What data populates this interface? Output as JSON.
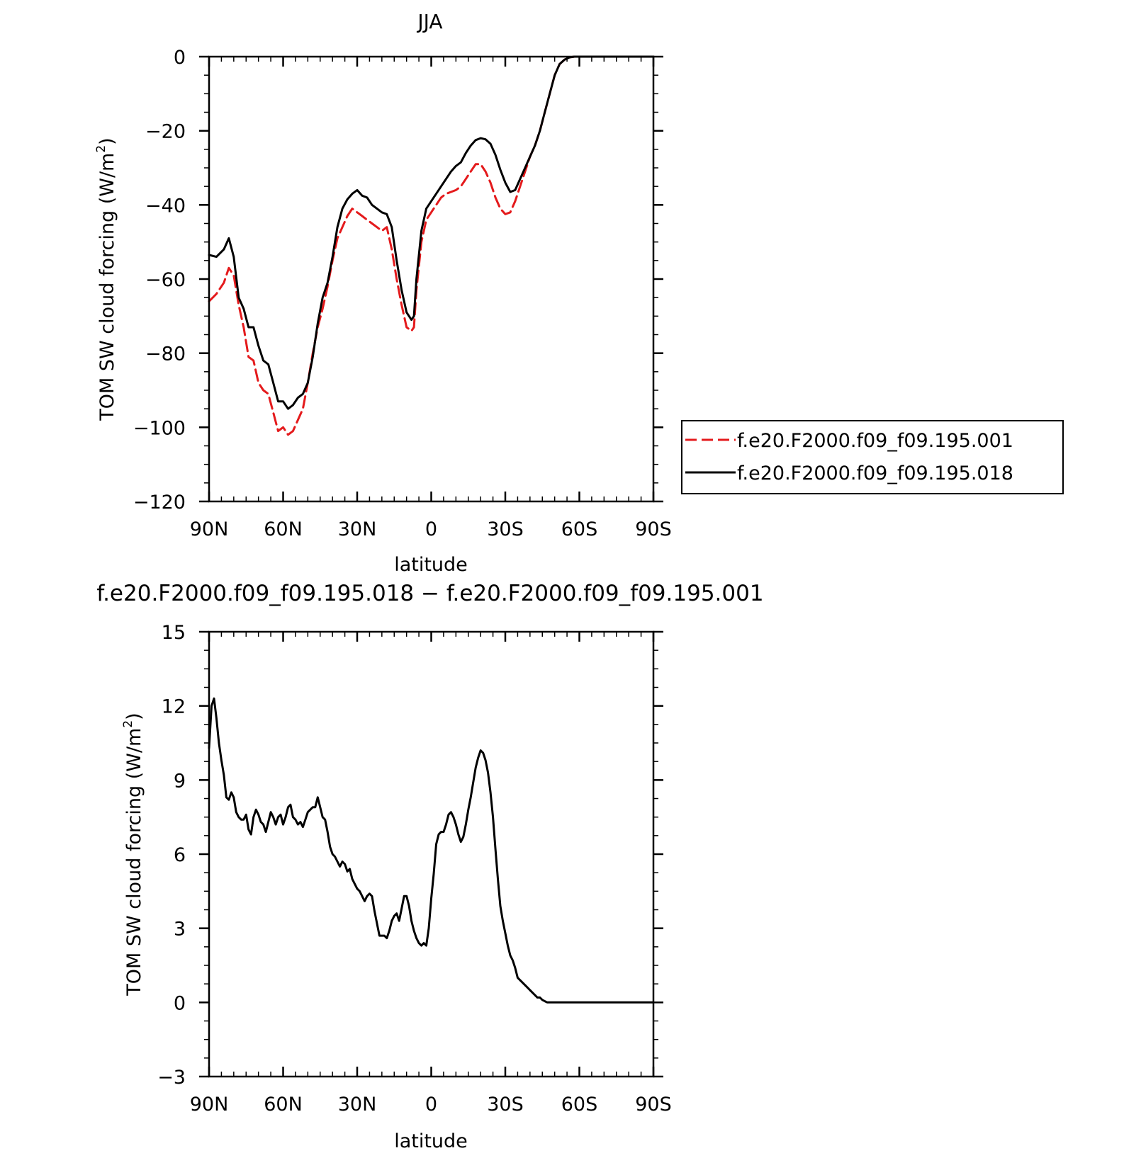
{
  "chart_data": [
    {
      "type": "line",
      "title": "JJA",
      "xlabel": "latitude",
      "ylabel": "TOM SW cloud forcing (W/m",
      "ylabel_sup": "2",
      "ylabel_close": ")",
      "xlim": [
        90,
        -90
      ],
      "ylim": [
        -120,
        0
      ],
      "x_ticks": [
        90,
        60,
        30,
        0,
        -30,
        -60,
        -90
      ],
      "x_tick_labels": [
        "90N",
        "60N",
        "30N",
        "0",
        "30S",
        "60S",
        "90S"
      ],
      "y_ticks": [
        0,
        -20,
        -40,
        -60,
        -80,
        -100,
        -120
      ],
      "y_tick_labels": [
        "0",
        "−20",
        "−40",
        "−60",
        "−80",
        "−100",
        "−120"
      ],
      "legend_position": "right",
      "series": [
        {
          "name": "f.e20.F2000.f09_f09.195.001",
          "color": "#e41a1c",
          "style": "dashed",
          "x": [
            90,
            87,
            84,
            82,
            80,
            78,
            76,
            74,
            72,
            70,
            68,
            66,
            64,
            62,
            60,
            58,
            56,
            54,
            52,
            50,
            48,
            46,
            44,
            42,
            40,
            38,
            36,
            34,
            32,
            30,
            28,
            26,
            24,
            22,
            20,
            18,
            16,
            14,
            12,
            10,
            8,
            7,
            6,
            4,
            2,
            0,
            -2,
            -4,
            -6,
            -8,
            -10,
            -12,
            -14,
            -16,
            -18,
            -20,
            -22,
            -24,
            -26,
            -28,
            -30,
            -32,
            -34,
            -36,
            -38,
            -40,
            -42,
            -44,
            -46,
            -48,
            -50,
            -52,
            -54,
            -56,
            -58,
            -60,
            -62,
            -64,
            -66,
            -68,
            -70,
            -75,
            -80,
            -85,
            -90
          ],
          "y": [
            -66,
            -64,
            -61,
            -57,
            -59,
            -67,
            -73,
            -81,
            -82,
            -88,
            -90,
            -91,
            -96,
            -101,
            -100,
            -102,
            -101,
            -98,
            -95,
            -88,
            -80,
            -73,
            -68,
            -62,
            -55,
            -49,
            -46,
            -43,
            -41,
            -42,
            -43,
            -44,
            -45,
            -46,
            -47,
            -46,
            -52,
            -60,
            -67,
            -73,
            -74,
            -73,
            -63,
            -50,
            -44,
            -42,
            -40,
            -38,
            -37,
            -36.5,
            -36,
            -35,
            -33,
            -31,
            -29,
            -29,
            -31,
            -34,
            -38,
            -41,
            -42.5,
            -42,
            -39,
            -35,
            -31,
            -27,
            -24,
            -20,
            -15,
            -10,
            -5,
            -2,
            -0.8,
            -0.2,
            0,
            0,
            0,
            0,
            0,
            0,
            0,
            0,
            0,
            0,
            0
          ]
        },
        {
          "name": "f.e20.F2000.f09_f09.195.018",
          "color": "#000000",
          "style": "solid",
          "x": [
            90,
            87,
            84,
            82,
            80,
            78,
            76,
            74,
            72,
            70,
            68,
            66,
            64,
            62,
            60,
            58,
            56,
            54,
            52,
            50,
            48,
            46,
            44,
            42,
            40,
            38,
            36,
            34,
            32,
            30,
            28,
            26,
            24,
            22,
            20,
            18,
            16,
            14,
            12,
            10,
            8,
            7,
            6,
            4,
            2,
            0,
            -2,
            -4,
            -6,
            -8,
            -10,
            -12,
            -14,
            -16,
            -18,
            -20,
            -22,
            -24,
            -26,
            -28,
            -30,
            -32,
            -34,
            -36,
            -38,
            -40,
            -42,
            -44,
            -46,
            -48,
            -50,
            -52,
            -54,
            -56,
            -58,
            -60,
            -62,
            -64,
            -66,
            -68,
            -70,
            -75,
            -80,
            -85,
            -90
          ],
          "y": [
            -53.5,
            -54,
            -52,
            -49,
            -54,
            -65,
            -68,
            -73,
            -73,
            -78,
            -82,
            -83,
            -88,
            -93,
            -93,
            -95,
            -94,
            -92,
            -91,
            -88,
            -81,
            -72,
            -65,
            -61,
            -54,
            -46,
            -41,
            -38.5,
            -37,
            -36,
            -37.5,
            -38,
            -40,
            -41,
            -42,
            -42.5,
            -46,
            -55,
            -63,
            -69,
            -71,
            -70,
            -60,
            -47,
            -41,
            -39,
            -37,
            -35,
            -33,
            -31,
            -29.5,
            -28.5,
            -26,
            -24,
            -22.5,
            -22,
            -22.3,
            -23.5,
            -26.5,
            -30.5,
            -34,
            -36.5,
            -36,
            -33,
            -30,
            -27,
            -24,
            -20,
            -15,
            -10,
            -5,
            -2,
            -0.8,
            -0.2,
            0,
            0,
            0,
            0,
            0,
            0,
            0,
            0,
            0,
            0,
            0
          ]
        }
      ]
    },
    {
      "type": "line",
      "title": "f.e20.F2000.f09_f09.195.018 − f.e20.F2000.f09_f09.195.001",
      "xlabel": "latitude",
      "ylabel": "TOM SW cloud forcing (W/m",
      "ylabel_sup": "2",
      "ylabel_close": ")",
      "xlim": [
        90,
        -90
      ],
      "ylim": [
        -3,
        15
      ],
      "x_ticks": [
        90,
        60,
        30,
        0,
        -30,
        -60,
        -90
      ],
      "x_tick_labels": [
        "90N",
        "60N",
        "30N",
        "0",
        "30S",
        "60S",
        "90S"
      ],
      "y_ticks": [
        15,
        12,
        9,
        6,
        3,
        0,
        -3
      ],
      "y_tick_labels": [
        "15",
        "12",
        "9",
        "6",
        "3",
        "0",
        "−3"
      ],
      "series": [
        {
          "color": "#000000",
          "style": "solid",
          "x": [
            90,
            89,
            88,
            87,
            86,
            85,
            84,
            83,
            82,
            81,
            80,
            79,
            78,
            77,
            76,
            75,
            74,
            73,
            72,
            71,
            70,
            69,
            68,
            67,
            66,
            65,
            64,
            63,
            62,
            61,
            60,
            59,
            58,
            57,
            56,
            55,
            54,
            53,
            52,
            51,
            50,
            49,
            48,
            47,
            46,
            45,
            44,
            43,
            42,
            41,
            40,
            39,
            38,
            37,
            36,
            35,
            34,
            33,
            32,
            31,
            30,
            29,
            28,
            27,
            26,
            25,
            24,
            23,
            22,
            21,
            20,
            19,
            18,
            17,
            16,
            15,
            14,
            13,
            12,
            11,
            10,
            9,
            8,
            7,
            6,
            5,
            4,
            3,
            2,
            1,
            0,
            -1,
            -2,
            -3,
            -4,
            -5,
            -6,
            -7,
            -8,
            -9,
            -10,
            -11,
            -12,
            -13,
            -14,
            -15,
            -16,
            -17,
            -18,
            -19,
            -20,
            -21,
            -22,
            -23,
            -24,
            -25,
            -26,
            -27,
            -28,
            -29,
            -30,
            -31,
            -32,
            -33,
            -34,
            -35,
            -36,
            -37,
            -38,
            -39,
            -40,
            -41,
            -42,
            -43,
            -44,
            -45,
            -46,
            -47,
            -48,
            -49,
            -50,
            -51,
            -52,
            -53,
            -54,
            -55,
            -56,
            -57,
            -58,
            -59,
            -60,
            -62,
            -64,
            -66,
            -68,
            -70,
            -75,
            -80,
            -85,
            -90
          ],
          "y": [
            10.3,
            12.0,
            12.3,
            11.5,
            10.5,
            9.8,
            9.2,
            8.3,
            8.2,
            8.5,
            8.3,
            7.7,
            7.5,
            7.4,
            7.4,
            7.6,
            7.0,
            6.8,
            7.5,
            7.8,
            7.6,
            7.3,
            7.2,
            6.9,
            7.3,
            7.7,
            7.5,
            7.2,
            7.5,
            7.6,
            7.2,
            7.5,
            7.9,
            8.0,
            7.5,
            7.4,
            7.2,
            7.3,
            7.1,
            7.4,
            7.7,
            7.8,
            7.9,
            7.9,
            8.3,
            7.9,
            7.5,
            7.4,
            6.9,
            6.3,
            6.0,
            5.9,
            5.7,
            5.5,
            5.7,
            5.6,
            5.3,
            5.4,
            5.0,
            4.8,
            4.6,
            4.5,
            4.3,
            4.1,
            4.3,
            4.4,
            4.3,
            3.7,
            3.2,
            2.7,
            2.7,
            2.7,
            2.6,
            2.9,
            3.3,
            3.5,
            3.6,
            3.3,
            3.8,
            4.3,
            4.3,
            3.9,
            3.3,
            2.9,
            2.6,
            2.4,
            2.3,
            2.4,
            2.3,
            3.0,
            4.2,
            5.2,
            6.4,
            6.8,
            6.9,
            6.9,
            7.2,
            7.6,
            7.7,
            7.5,
            7.2,
            6.8,
            6.5,
            6.7,
            7.2,
            7.8,
            8.3,
            8.9,
            9.5,
            9.9,
            10.2,
            10.1,
            9.8,
            9.3,
            8.5,
            7.5,
            6.2,
            5.0,
            3.9,
            3.3,
            2.8,
            2.3,
            1.9,
            1.7,
            1.4,
            1.0,
            0.9,
            0.8,
            0.7,
            0.6,
            0.5,
            0.4,
            0.3,
            0.2,
            0.2,
            0.1,
            0.05,
            0.0,
            0.0,
            0.0,
            0.0,
            0.0,
            0.0,
            0.0,
            0.0,
            0.0,
            0.0,
            0.0,
            0.0,
            0.0,
            0.0,
            0.0,
            0.0,
            0.0,
            0.0,
            0.0,
            0.0,
            0.0,
            0.0,
            0.0
          ]
        }
      ]
    }
  ]
}
